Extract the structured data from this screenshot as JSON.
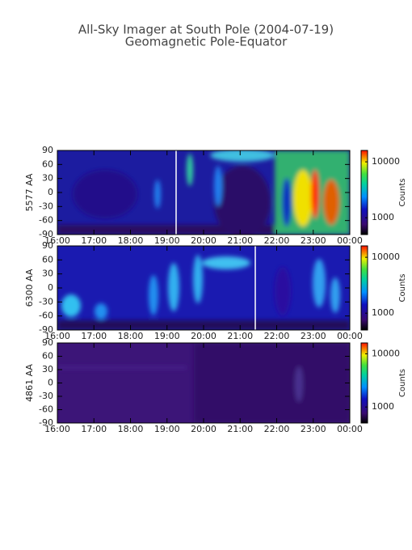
{
  "title": "All-Sky Imager at South Pole (2004-07-19)",
  "subtitle": "Geomagnetic Pole-Equator",
  "chart_data": [
    {
      "type": "heatmap",
      "ylabel": "5577 AA",
      "xlim": [
        16,
        24
      ],
      "xticks": [
        {
          "value": 16,
          "label": "16:00"
        },
        {
          "value": 17,
          "label": "17:00"
        },
        {
          "value": 18,
          "label": "18:00"
        },
        {
          "value": 19,
          "label": "19:00"
        },
        {
          "value": 20,
          "label": "20:00"
        },
        {
          "value": 21,
          "label": "21:00"
        },
        {
          "value": 22,
          "label": "22:00"
        },
        {
          "value": 23,
          "label": "23:00"
        },
        {
          "value": 24,
          "label": "00:00"
        }
      ],
      "ylim": [
        -90,
        90
      ],
      "yticks": [
        90,
        60,
        30,
        0,
        -30,
        -60,
        -90
      ],
      "colorbar_label": "Counts",
      "colorbar_lim": [
        500,
        16000
      ],
      "colorbar_log": true,
      "colorbar_ticks": [
        10000,
        1000
      ]
    },
    {
      "type": "heatmap",
      "ylabel": "6300 AA",
      "xlim": [
        16,
        24
      ],
      "xticks": [
        {
          "value": 16,
          "label": "16:00"
        },
        {
          "value": 17,
          "label": "17:00"
        },
        {
          "value": 18,
          "label": "18:00"
        },
        {
          "value": 19,
          "label": "19:00"
        },
        {
          "value": 20,
          "label": "20:00"
        },
        {
          "value": 21,
          "label": "21:00"
        },
        {
          "value": 22,
          "label": "22:00"
        },
        {
          "value": 23,
          "label": "23:00"
        },
        {
          "value": 24,
          "label": "00:00"
        }
      ],
      "ylim": [
        -90,
        90
      ],
      "yticks": [
        90,
        60,
        30,
        0,
        -30,
        -60,
        -90
      ],
      "colorbar_label": "Counts",
      "colorbar_lim": [
        500,
        16000
      ],
      "colorbar_log": true,
      "colorbar_ticks": [
        10000,
        1000
      ]
    },
    {
      "type": "heatmap",
      "ylabel": "4861 AA",
      "xlim": [
        16,
        24
      ],
      "xticks": [
        {
          "value": 16,
          "label": "16:00"
        },
        {
          "value": 17,
          "label": "17:00"
        },
        {
          "value": 18,
          "label": "18:00"
        },
        {
          "value": 19,
          "label": "19:00"
        },
        {
          "value": 20,
          "label": "20:00"
        },
        {
          "value": 21,
          "label": "21:00"
        },
        {
          "value": 22,
          "label": "22:00"
        },
        {
          "value": 23,
          "label": "23:00"
        },
        {
          "value": 24,
          "label": "00:00"
        }
      ],
      "ylim": [
        -90,
        90
      ],
      "yticks": [
        90,
        60,
        30,
        0,
        -30,
        -60,
        -90
      ],
      "colorbar_label": "Counts",
      "colorbar_lim": [
        500,
        16000
      ],
      "colorbar_log": true,
      "colorbar_ticks": [
        10000,
        1000
      ]
    }
  ]
}
